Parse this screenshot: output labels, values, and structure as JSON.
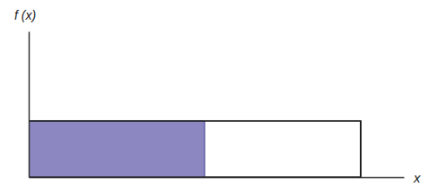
{
  "chart_data": {
    "type": "area",
    "ylabel": "f (x)",
    "xlabel": "x",
    "x": [
      0,
      1
    ],
    "values": [
      1,
      1
    ],
    "shaded": {
      "x": [
        0,
        0.53
      ],
      "values": [
        1,
        1
      ],
      "color": "#8c87c1"
    },
    "xlim": [
      0,
      1.13
    ],
    "ylim": [
      0,
      2.6
    ],
    "tick_labels": false
  }
}
